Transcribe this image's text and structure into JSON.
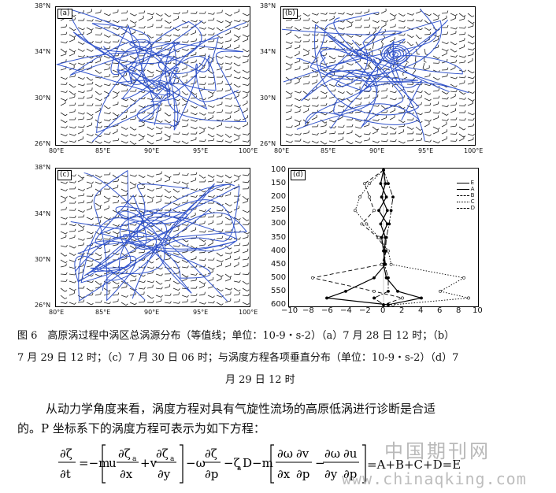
{
  "panels": {
    "a": {
      "label": "(a)"
    },
    "b": {
      "label": "(b)"
    },
    "c": {
      "label": "(c)"
    },
    "d": {
      "label": "(d)"
    }
  },
  "map_axes": {
    "lat_ticks": [
      "38°N",
      "34°N",
      "30°N",
      "26°N"
    ],
    "lon_ticks": [
      "80°E",
      "85°E",
      "90°E",
      "95°E",
      "100°E"
    ]
  },
  "chart_data": {
    "type": "line",
    "panel": "(d)",
    "y_axis": {
      "ticks": [
        100,
        150,
        200,
        250,
        300,
        350,
        400,
        450,
        500,
        550,
        600
      ],
      "range": [
        100,
        600
      ],
      "inverted": true
    },
    "x_axis": {
      "ticks": [
        -10,
        -8,
        -6,
        -4,
        -2,
        0,
        2,
        4,
        6,
        8,
        10
      ],
      "range": [
        -10,
        10
      ]
    },
    "legend_position": "top-right",
    "series": [
      {
        "name": "E",
        "style": "solid-plus",
        "color": "#000000",
        "levels": [
          100,
          150,
          200,
          250,
          300,
          350,
          400,
          450,
          500,
          550,
          575,
          600
        ],
        "values": [
          0,
          0.2,
          -0.2,
          0.4,
          -0.3,
          0.2,
          0.1,
          0,
          0.3,
          1.5,
          4,
          0.5
        ]
      },
      {
        "name": "A",
        "style": "solid-triangle",
        "color": "#000000",
        "levels": [
          100,
          150,
          200,
          250,
          300,
          350,
          400,
          450,
          500,
          550,
          575,
          600
        ],
        "values": [
          0,
          -0.3,
          0.3,
          -0.5,
          0.4,
          -0.2,
          0,
          0.2,
          -1,
          -4,
          -6,
          0.5
        ]
      },
      {
        "name": "B",
        "style": "dashed-circle",
        "color": "#000000",
        "levels": [
          100,
          150,
          200,
          250,
          300,
          350,
          400,
          450,
          500,
          550,
          575,
          600
        ],
        "values": [
          0,
          -2,
          -1.5,
          -1,
          -2.3,
          -0.6,
          0.3,
          -0.2,
          -7.5,
          -1,
          2,
          0
        ]
      },
      {
        "name": "C",
        "style": "dotted-square",
        "color": "#000000",
        "levels": [
          100,
          150,
          200,
          250,
          300,
          350,
          400,
          450,
          500,
          550,
          575,
          600
        ],
        "values": [
          0,
          -1.5,
          -2.5,
          -3,
          -1.8,
          -0.5,
          0.5,
          0.8,
          8.5,
          6,
          9,
          1
        ]
      },
      {
        "name": "D",
        "style": "dashed-filled-square",
        "color": "#000000",
        "levels": [
          100,
          150,
          200,
          250,
          300,
          350,
          400,
          450,
          500,
          550,
          575,
          600
        ],
        "values": [
          0,
          0.5,
          1,
          0.8,
          0.6,
          0.3,
          0.2,
          0.1,
          0.5,
          0.5,
          -1,
          0
        ]
      }
    ]
  },
  "caption": {
    "line1": "图 6　高原涡过程中涡区总涡源分布（等值线；单位：10-9・s-2）（a）7 月 28 日 12 时；（b）",
    "line2": "7 月 29 日 12 时；（c）7 月 30 日 06 时；与涡度方程各项垂直分布（单位：10-9・s-2）（d）7",
    "line3": "月 29 日 12 时"
  },
  "body": {
    "para1": "从动力学角度来看，涡度方程对具有气旋性流场的高原低涡进行诊断是合适",
    "para2": "的。P 坐标系下的涡度方程可表示为如下方程："
  },
  "equation": {
    "result": "=A+B+C+D=E"
  },
  "watermark": {
    "cn": "中国期刊网",
    "url": "www.chinaqking.com"
  }
}
